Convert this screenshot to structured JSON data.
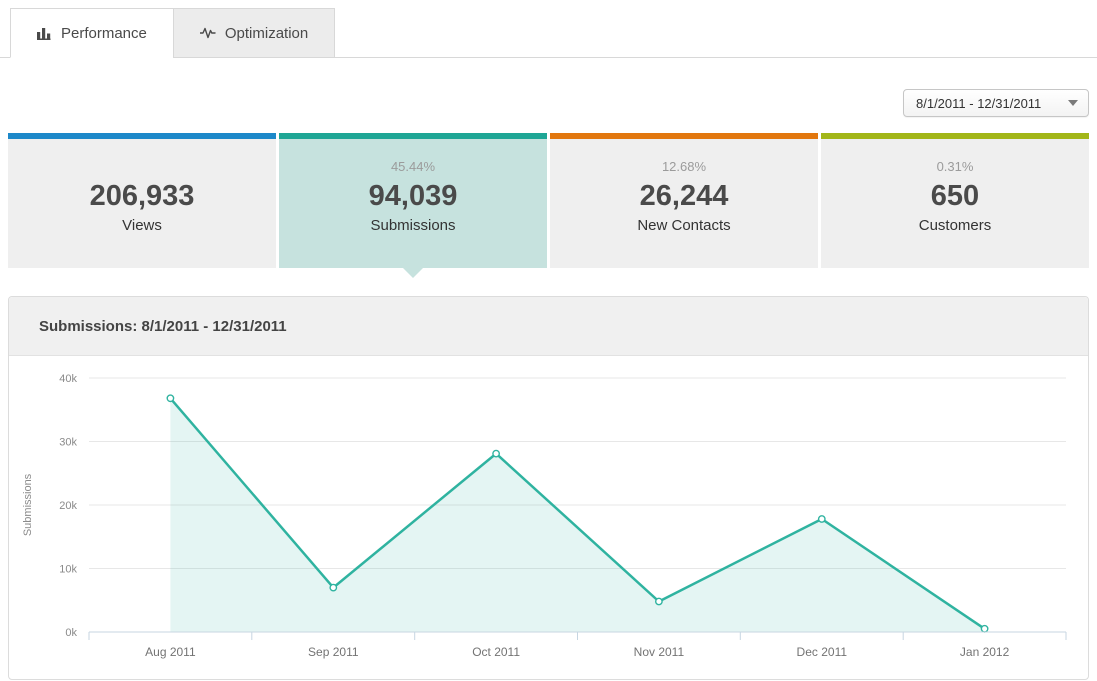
{
  "tabs": [
    {
      "label": "Performance",
      "icon": "bar-chart-icon",
      "active": true
    },
    {
      "label": "Optimization",
      "icon": "pulse-icon",
      "active": false
    }
  ],
  "date_range": {
    "value": "8/1/2011 - 12/31/2011"
  },
  "metrics": [
    {
      "percent": "",
      "value": "206,933",
      "label": "Views",
      "color": "#1d88c9",
      "selected": false
    },
    {
      "percent": "45.44%",
      "value": "94,039",
      "label": "Submissions",
      "color": "#1ea695",
      "selected": true
    },
    {
      "percent": "12.68%",
      "value": "26,244",
      "label": "New Contacts",
      "color": "#e2770e",
      "selected": false
    },
    {
      "percent": "0.31%",
      "value": "650",
      "label": "Customers",
      "color": "#a2b618",
      "selected": false
    }
  ],
  "chart_panel": {
    "title": "Submissions: 8/1/2011 - 12/31/2011"
  },
  "chart_data": {
    "type": "area",
    "title": "Submissions: 8/1/2011 - 12/31/2011",
    "categories": [
      "Aug 2011",
      "Sep 2011",
      "Oct 2011",
      "Nov 2011",
      "Dec 2011",
      "Jan 2012"
    ],
    "series": [
      {
        "name": "Submissions",
        "values": [
          36800,
          7000,
          28100,
          4800,
          17800,
          500
        ]
      }
    ],
    "xlabel": "",
    "ylabel": "Submissions",
    "ylim": [
      0,
      40000
    ],
    "yticks": [
      0,
      10000,
      20000,
      30000,
      40000
    ],
    "ytick_labels": [
      "0k",
      "10k",
      "20k",
      "30k",
      "40k"
    ],
    "grid": true,
    "legend": "none",
    "line_color": "#2fb3a0",
    "fill_color": "rgba(47,179,160,0.13)",
    "marker": "open-circle"
  },
  "colors": {
    "selected_card_bg": "#c6e2de",
    "gridline": "#e7e7e7",
    "axis": "#c7d6e2",
    "axis_text": "#8a8a8a",
    "axis_text2": "#737373"
  }
}
